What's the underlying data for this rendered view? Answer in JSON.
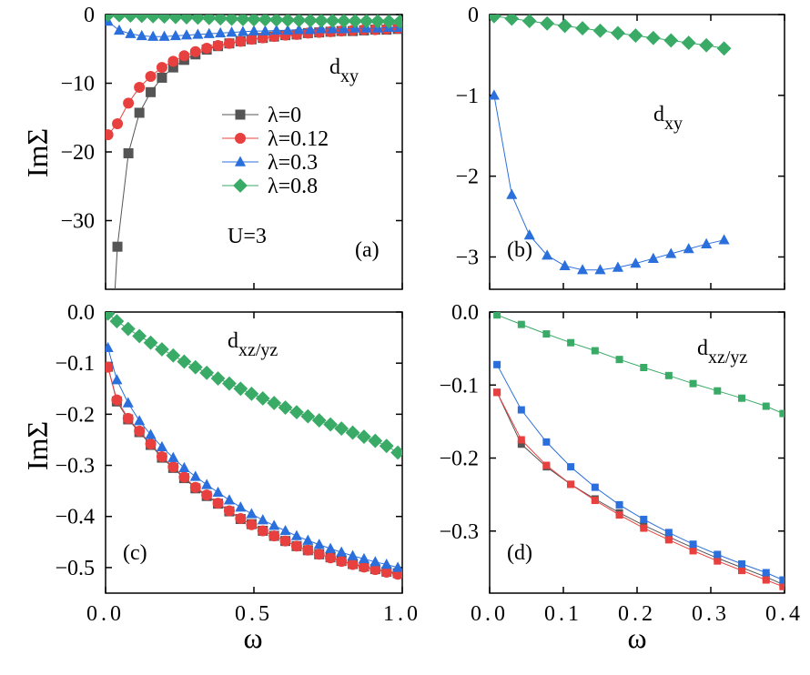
{
  "figure": {
    "ylabel": "ImΣ",
    "xlabel": "ω"
  },
  "colors": {
    "λ=0": "#555555",
    "λ=0.12": "#e8403f",
    "λ=0.3": "#2a6fdb",
    "λ=0.8": "#3aaa67"
  },
  "chart_data": [
    {
      "panel": "a",
      "type": "line",
      "label": "(a)",
      "orbital_main": "d",
      "orbital_sub": "xy",
      "annotation": "U=3",
      "xlim": [
        0,
        1
      ],
      "ylim": [
        -40,
        0
      ],
      "yticks": [
        0,
        -10,
        -20,
        -30
      ],
      "ytick_labels": [
        "0",
        "−10",
        "−20",
        "−30"
      ],
      "xticks": [
        0,
        0.5,
        1
      ],
      "xtick_labels": [],
      "legend": [
        "λ=0",
        "λ=0.12",
        "λ=0.3",
        "λ=0.8"
      ],
      "legend_position": "center",
      "series": [
        {
          "name": "λ=0",
          "marker": "square",
          "x": [
            0.04,
            0.077,
            0.114,
            0.152,
            0.19,
            0.228,
            0.265,
            0.303,
            0.341,
            0.379,
            0.417,
            0.455,
            0.492,
            0.53,
            0.568,
            0.606,
            0.644,
            0.682,
            0.72,
            0.758,
            0.795,
            0.833,
            0.871,
            0.909,
            0.947,
            0.985
          ],
          "y": [
            -33.8,
            -20.2,
            -14.3,
            -11.3,
            -9.2,
            -7.7,
            -6.6,
            -5.8,
            -5.1,
            -4.6,
            -4.2,
            -3.9,
            -3.6,
            -3.4,
            -3.2,
            -3.0,
            -2.9,
            -2.7,
            -2.6,
            -2.5,
            -2.4,
            -2.4,
            -2.3,
            -2.2,
            -2.2,
            -2.1
          ]
        },
        {
          "name": "λ=0.12",
          "marker": "circle",
          "x": [
            0.008,
            0.04,
            0.077,
            0.114,
            0.152,
            0.19,
            0.228,
            0.265,
            0.303,
            0.341,
            0.379,
            0.417,
            0.455,
            0.492,
            0.53,
            0.568,
            0.606,
            0.644,
            0.682,
            0.72,
            0.758,
            0.795,
            0.833,
            0.871,
            0.909,
            0.947,
            0.985
          ],
          "y": [
            -17.5,
            -15.9,
            -12.9,
            -10.6,
            -9.0,
            -7.7,
            -6.8,
            -6.0,
            -5.4,
            -4.9,
            -4.5,
            -4.2,
            -3.9,
            -3.6,
            -3.4,
            -3.2,
            -3.0,
            -2.9,
            -2.7,
            -2.6,
            -2.5,
            -2.4,
            -2.3,
            -2.2,
            -2.2,
            -2.1,
            -2.0
          ]
        },
        {
          "name": "λ=0.3",
          "marker": "triangle",
          "x": [
            0.008,
            0.046,
            0.084,
            0.122,
            0.16,
            0.198,
            0.236,
            0.273,
            0.311,
            0.349,
            0.387,
            0.425,
            0.463,
            0.5,
            0.538,
            0.576,
            0.614,
            0.652,
            0.69,
            0.727,
            0.765,
            0.803,
            0.841,
            0.879,
            0.917,
            0.955,
            0.992
          ],
          "y": [
            -1.0,
            -2.3,
            -2.8,
            -3.1,
            -3.2,
            -3.2,
            -3.1,
            -3.0,
            -2.9,
            -2.8,
            -2.7,
            -2.6,
            -2.5,
            -2.4,
            -2.4,
            -2.3,
            -2.3,
            -2.2,
            -2.2,
            -2.1,
            -2.1,
            -2.1,
            -2.0,
            -2.0,
            -2.0,
            -1.9,
            -1.9
          ]
        },
        {
          "name": "λ=0.8",
          "marker": "diamond",
          "x": [
            0.008,
            0.046,
            0.084,
            0.122,
            0.16,
            0.198,
            0.236,
            0.273,
            0.311,
            0.349,
            0.387,
            0.425,
            0.463,
            0.5,
            0.538,
            0.576,
            0.614,
            0.652,
            0.69,
            0.727,
            0.765,
            0.803,
            0.841,
            0.879,
            0.917,
            0.955,
            0.992
          ],
          "y": [
            -0.05,
            -0.1,
            -0.15,
            -0.2,
            -0.25,
            -0.3,
            -0.35,
            -0.4,
            -0.45,
            -0.5,
            -0.55,
            -0.6,
            -0.65,
            -0.7,
            -0.73,
            -0.76,
            -0.79,
            -0.82,
            -0.85,
            -0.88,
            -0.9,
            -0.92,
            -0.94,
            -0.96,
            -0.98,
            -1.0,
            -1.02
          ]
        }
      ]
    },
    {
      "panel": "b",
      "type": "line",
      "label": "(b)",
      "orbital_main": "d",
      "orbital_sub": "xy",
      "xlim": [
        0,
        0.4
      ],
      "ylim": [
        -3.4,
        0
      ],
      "yticks": [
        0,
        -1,
        -2,
        -3
      ],
      "ytick_labels": [
        "0",
        "−1",
        "−2",
        "−3"
      ],
      "xticks": [
        0,
        0.1,
        0.2,
        0.3,
        0.4
      ],
      "xtick_labels": [],
      "series": [
        {
          "name": "λ=0.3",
          "marker": "triangle",
          "x": [
            0.006,
            0.03,
            0.054,
            0.078,
            0.102,
            0.126,
            0.15,
            0.174,
            0.198,
            0.222,
            0.246,
            0.27,
            0.294,
            0.318
          ],
          "y": [
            -1.0,
            -2.23,
            -2.73,
            -2.98,
            -3.11,
            -3.16,
            -3.16,
            -3.13,
            -3.08,
            -3.02,
            -2.96,
            -2.9,
            -2.84,
            -2.79
          ]
        },
        {
          "name": "λ=0.8",
          "marker": "diamond",
          "x": [
            0.006,
            0.03,
            0.054,
            0.078,
            0.102,
            0.126,
            0.15,
            0.174,
            0.198,
            0.222,
            0.246,
            0.27,
            0.294,
            0.318
          ],
          "y": [
            -0.02,
            -0.05,
            -0.08,
            -0.11,
            -0.14,
            -0.17,
            -0.2,
            -0.23,
            -0.26,
            -0.29,
            -0.32,
            -0.35,
            -0.38,
            -0.42
          ]
        }
      ]
    },
    {
      "panel": "c",
      "type": "line",
      "label": "(c)",
      "orbital_main": "d",
      "orbital_sub": "xz/yz",
      "xlim": [
        0,
        1
      ],
      "ylim": [
        -0.55,
        0
      ],
      "yticks": [
        0,
        -0.1,
        -0.2,
        -0.3,
        -0.4,
        -0.5
      ],
      "ytick_labels": [
        "0.0",
        "−0.1",
        "−0.2",
        "−0.3",
        "−0.4",
        "−0.5"
      ],
      "xticks": [
        0,
        0.5,
        1
      ],
      "xtick_labels": [
        "0.0",
        "0.5",
        "1.0"
      ],
      "series": [
        {
          "name": "λ=0",
          "marker": "square",
          "x": [
            0.008,
            0.038,
            0.076,
            0.114,
            0.152,
            0.19,
            0.228,
            0.265,
            0.303,
            0.341,
            0.379,
            0.417,
            0.455,
            0.492,
            0.53,
            0.568,
            0.606,
            0.644,
            0.682,
            0.72,
            0.758,
            0.795,
            0.833,
            0.871,
            0.909,
            0.947,
            0.985
          ],
          "y": [
            -0.107,
            -0.175,
            -0.21,
            -0.235,
            -0.26,
            -0.285,
            -0.305,
            -0.325,
            -0.345,
            -0.36,
            -0.375,
            -0.39,
            -0.405,
            -0.415,
            -0.428,
            -0.438,
            -0.448,
            -0.458,
            -0.466,
            -0.474,
            -0.48,
            -0.487,
            -0.493,
            -0.498,
            -0.503,
            -0.508,
            -0.511
          ]
        },
        {
          "name": "λ=0.12",
          "marker": "circle",
          "x": [
            0.008,
            0.038,
            0.076,
            0.114,
            0.152,
            0.19,
            0.228,
            0.265,
            0.303,
            0.341,
            0.379,
            0.417,
            0.455,
            0.492,
            0.53,
            0.568,
            0.606,
            0.644,
            0.682,
            0.72,
            0.758,
            0.795,
            0.833,
            0.871,
            0.909,
            0.947,
            0.985
          ],
          "y": [
            -0.108,
            -0.172,
            -0.208,
            -0.233,
            -0.258,
            -0.283,
            -0.303,
            -0.323,
            -0.343,
            -0.358,
            -0.374,
            -0.389,
            -0.404,
            -0.416,
            -0.428,
            -0.438,
            -0.448,
            -0.458,
            -0.466,
            -0.474,
            -0.481,
            -0.488,
            -0.494,
            -0.499,
            -0.504,
            -0.509,
            -0.513
          ]
        },
        {
          "name": "λ=0.3",
          "marker": "triangle",
          "x": [
            0.008,
            0.038,
            0.076,
            0.114,
            0.152,
            0.19,
            0.228,
            0.265,
            0.303,
            0.341,
            0.379,
            0.417,
            0.455,
            0.492,
            0.53,
            0.568,
            0.606,
            0.644,
            0.682,
            0.72,
            0.758,
            0.795,
            0.833,
            0.871,
            0.909,
            0.947,
            0.985
          ],
          "y": [
            -0.07,
            -0.133,
            -0.178,
            -0.213,
            -0.24,
            -0.264,
            -0.285,
            -0.305,
            -0.322,
            -0.338,
            -0.353,
            -0.368,
            -0.382,
            -0.395,
            -0.407,
            -0.418,
            -0.428,
            -0.438,
            -0.447,
            -0.455,
            -0.463,
            -0.47,
            -0.477,
            -0.483,
            -0.489,
            -0.494,
            -0.5
          ]
        },
        {
          "name": "λ=0.8",
          "marker": "diamond",
          "x": [
            0.008,
            0.038,
            0.076,
            0.114,
            0.152,
            0.19,
            0.228,
            0.265,
            0.303,
            0.341,
            0.379,
            0.417,
            0.455,
            0.492,
            0.53,
            0.568,
            0.606,
            0.644,
            0.682,
            0.72,
            0.758,
            0.795,
            0.833,
            0.871,
            0.909,
            0.947,
            0.985
          ],
          "y": [
            -0.003,
            -0.018,
            -0.033,
            -0.047,
            -0.06,
            -0.073,
            -0.085,
            -0.097,
            -0.108,
            -0.119,
            -0.13,
            -0.14,
            -0.15,
            -0.16,
            -0.169,
            -0.178,
            -0.187,
            -0.196,
            -0.204,
            -0.212,
            -0.22,
            -0.228,
            -0.236,
            -0.244,
            -0.252,
            -0.262,
            -0.275
          ]
        }
      ]
    },
    {
      "panel": "d",
      "type": "line",
      "label": "(d)",
      "orbital_main": "d",
      "orbital_sub": "xz/yz",
      "xlim": [
        0,
        0.4
      ],
      "ylim": [
        -0.385,
        0
      ],
      "yticks": [
        0,
        -0.1,
        -0.2,
        -0.3
      ],
      "ytick_labels": [
        "0.0",
        "−0.1",
        "−0.2",
        "−0.3"
      ],
      "xticks": [
        0,
        0.1,
        0.2,
        0.3,
        0.4
      ],
      "xtick_labels": [
        "0.0",
        "0.1",
        "0.2",
        "0.3",
        "0.4"
      ],
      "series": [
        {
          "name": "λ=0",
          "marker": "square",
          "x": [
            0.01,
            0.043,
            0.077,
            0.11,
            0.143,
            0.176,
            0.209,
            0.243,
            0.276,
            0.309,
            0.342,
            0.375,
            0.398
          ],
          "y": [
            -0.11,
            -0.181,
            -0.212,
            -0.236,
            -0.256,
            -0.275,
            -0.292,
            -0.308,
            -0.323,
            -0.337,
            -0.35,
            -0.363,
            -0.373
          ]
        },
        {
          "name": "λ=0.12",
          "marker": "square",
          "x": [
            0.01,
            0.043,
            0.077,
            0.11,
            0.143,
            0.176,
            0.209,
            0.243,
            0.276,
            0.309,
            0.342,
            0.375,
            0.398
          ],
          "y": [
            -0.11,
            -0.175,
            -0.21,
            -0.236,
            -0.258,
            -0.278,
            -0.296,
            -0.312,
            -0.327,
            -0.341,
            -0.354,
            -0.367,
            -0.376
          ]
        },
        {
          "name": "λ=0.3",
          "marker": "square",
          "x": [
            0.01,
            0.043,
            0.077,
            0.11,
            0.143,
            0.176,
            0.209,
            0.243,
            0.276,
            0.309,
            0.342,
            0.375,
            0.398
          ],
          "y": [
            -0.072,
            -0.134,
            -0.178,
            -0.212,
            -0.24,
            -0.264,
            -0.284,
            -0.302,
            -0.318,
            -0.332,
            -0.345,
            -0.357,
            -0.367
          ]
        },
        {
          "name": "λ=0.8",
          "marker": "square",
          "x": [
            0.01,
            0.043,
            0.077,
            0.11,
            0.143,
            0.176,
            0.209,
            0.243,
            0.276,
            0.309,
            0.342,
            0.375,
            0.398
          ],
          "y": [
            -0.004,
            -0.017,
            -0.03,
            -0.042,
            -0.053,
            -0.065,
            -0.076,
            -0.087,
            -0.098,
            -0.108,
            -0.118,
            -0.129,
            -0.139
          ]
        }
      ]
    }
  ]
}
